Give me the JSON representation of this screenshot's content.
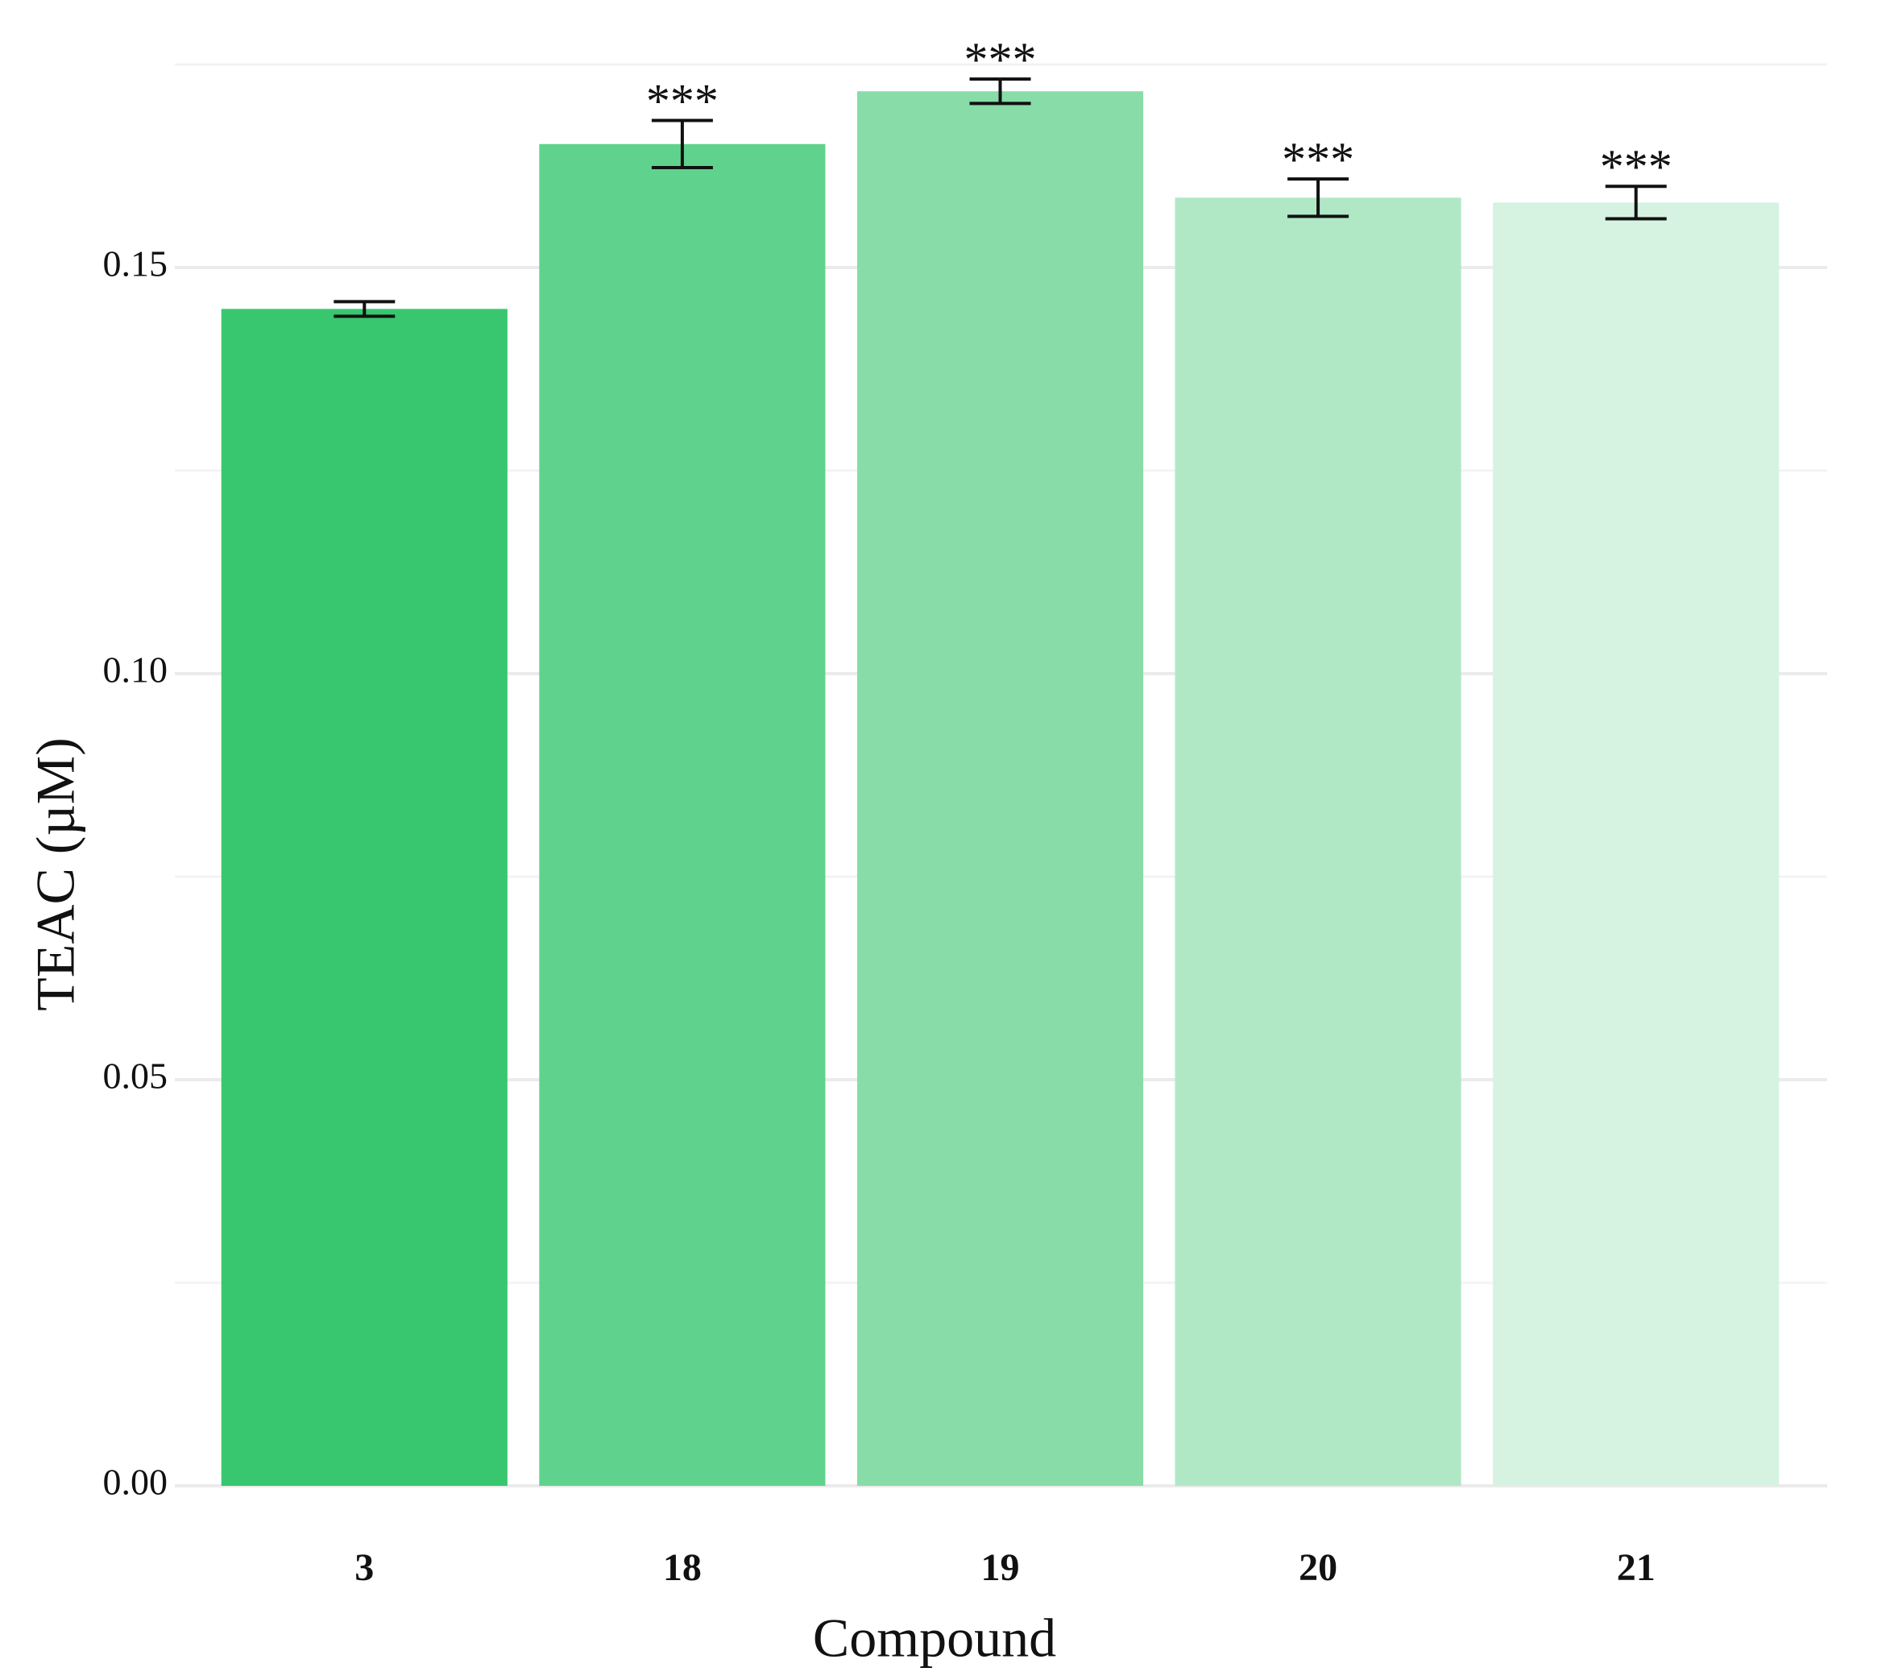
{
  "chart_data": {
    "type": "bar",
    "x_label": "Compound",
    "y_label": "TEAC (µM)",
    "categories": [
      "3",
      "18",
      "19",
      "20",
      "21"
    ],
    "values": [
      0.1449,
      0.1652,
      0.1717,
      0.1586,
      0.158
    ],
    "errors": [
      0.0009,
      0.0029,
      0.0015,
      0.0023,
      0.002
    ],
    "annotations": [
      null,
      "***",
      "***",
      "***",
      "***"
    ],
    "colors": [
      "#38c76f",
      "#5fd38d",
      "#88dca8",
      "#b0e8c6",
      "#d6f3e2"
    ],
    "ylim": [
      0,
      0.175
    ],
    "yticks": [
      {
        "value": 0,
        "label": "0.00"
      },
      {
        "value": 0.05,
        "label": "0.05"
      },
      {
        "value": 0.1,
        "label": "0.10"
      },
      {
        "value": 0.15,
        "label": "0.15"
      }
    ],
    "minor_yticks": [
      0.025,
      0.075,
      0.125,
      0.175
    ],
    "grid": true
  }
}
